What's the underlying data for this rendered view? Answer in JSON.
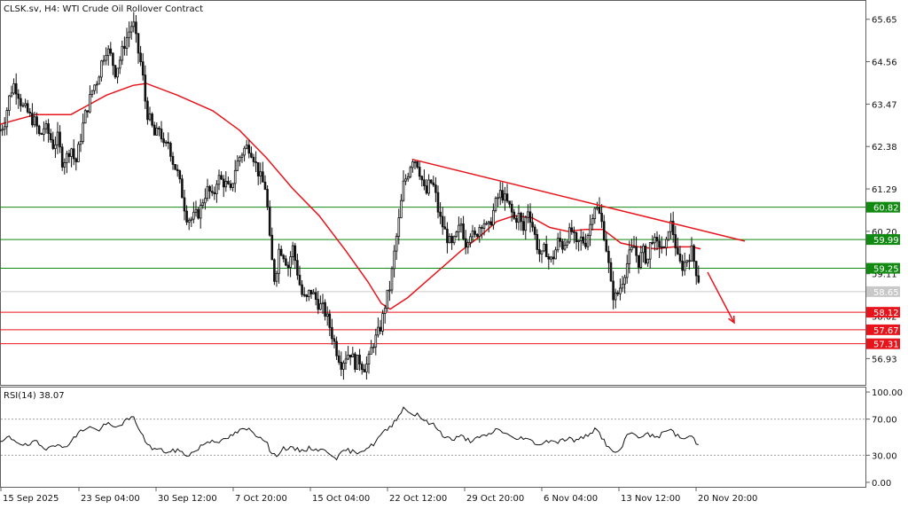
{
  "header": {
    "title": "CLSK.sv, H4:  WTI Crude Oil Rollover Contract"
  },
  "rsi_header": {
    "label": "RSI(14) 38.07"
  },
  "chart_data": [
    {
      "type": "candlestick",
      "title": "CLSK.sv, H4:  WTI Crude Oil Rollover Contract",
      "xlabel": "",
      "ylabel": "",
      "ylim": [
        56.3,
        66.1
      ],
      "yticks": [
        65.65,
        64.56,
        63.47,
        62.38,
        61.29,
        60.2,
        59.11,
        58.02,
        56.93
      ],
      "ytick_labels": [
        "65.65",
        "64.56",
        "63.47",
        "62.38",
        "61.29",
        "60.20",
        "59.11",
        "58.02",
        "56.93"
      ],
      "xtick_labels": [
        "15 Sep 2025",
        "23 Sep 04:00",
        "30 Sep 12:00",
        "7 Oct 20:00",
        "15 Oct 04:00",
        "22 Oct 12:00",
        "29 Oct 20:00",
        "6 Nov 04:00",
        "13 Nov 12:00",
        "20 Nov 20:00"
      ],
      "grid": false,
      "close_path": [
        [
          0,
          62.8
        ],
        [
          5,
          63.0
        ],
        [
          10,
          63.6
        ],
        [
          15,
          64.0
        ],
        [
          20,
          63.8
        ],
        [
          25,
          63.4
        ],
        [
          30,
          63.3
        ],
        [
          35,
          63.1
        ],
        [
          40,
          63.0
        ],
        [
          45,
          62.6
        ],
        [
          50,
          62.9
        ],
        [
          55,
          62.7
        ],
        [
          60,
          62.4
        ],
        [
          65,
          62.6
        ],
        [
          70,
          62.0
        ],
        [
          75,
          62.1
        ],
        [
          80,
          62.4
        ],
        [
          85,
          61.9
        ],
        [
          90,
          62.5
        ],
        [
          95,
          63.1
        ],
        [
          100,
          63.5
        ],
        [
          105,
          63.9
        ],
        [
          110,
          64.1
        ],
        [
          115,
          64.6
        ],
        [
          120,
          64.9
        ],
        [
          125,
          64.7
        ],
        [
          130,
          64.3
        ],
        [
          135,
          64.6
        ],
        [
          140,
          65.0
        ],
        [
          145,
          65.3
        ],
        [
          150,
          65.6
        ],
        [
          155,
          64.9
        ],
        [
          160,
          64.4
        ],
        [
          165,
          63.3
        ],
        [
          170,
          63.0
        ],
        [
          175,
          62.6
        ],
        [
          180,
          62.9
        ],
        [
          185,
          62.3
        ],
        [
          190,
          62.5
        ],
        [
          195,
          62.0
        ],
        [
          200,
          61.7
        ],
        [
          205,
          61.2
        ],
        [
          210,
          60.6
        ],
        [
          215,
          60.5
        ],
        [
          220,
          60.6
        ],
        [
          225,
          60.7
        ],
        [
          230,
          61.1
        ],
        [
          235,
          61.3
        ],
        [
          240,
          61.0
        ],
        [
          245,
          61.6
        ],
        [
          250,
          61.5
        ],
        [
          255,
          61.4
        ],
        [
          260,
          61.2
        ],
        [
          265,
          61.8
        ],
        [
          270,
          62.1
        ],
        [
          275,
          62.3
        ],
        [
          280,
          62.4
        ],
        [
          285,
          62.2
        ],
        [
          290,
          61.8
        ],
        [
          295,
          61.5
        ],
        [
          300,
          61.3
        ],
        [
          305,
          59.7
        ],
        [
          310,
          58.9
        ],
        [
          315,
          59.8
        ],
        [
          320,
          59.6
        ],
        [
          325,
          59.3
        ],
        [
          330,
          59.8
        ],
        [
          335,
          59.2
        ],
        [
          340,
          58.6
        ],
        [
          345,
          58.4
        ],
        [
          350,
          58.7
        ],
        [
          355,
          58.5
        ],
        [
          360,
          58.3
        ],
        [
          365,
          58.2
        ],
        [
          370,
          57.9
        ],
        [
          375,
          57.5
        ],
        [
          380,
          57.1
        ],
        [
          385,
          56.8
        ],
        [
          390,
          57.0
        ],
        [
          395,
          57.1
        ],
        [
          400,
          56.8
        ],
        [
          405,
          56.9
        ],
        [
          410,
          56.7
        ],
        [
          415,
          56.8
        ],
        [
          420,
          57.3
        ],
        [
          425,
          57.5
        ],
        [
          430,
          57.8
        ],
        [
          435,
          58.4
        ],
        [
          440,
          58.8
        ],
        [
          445,
          59.7
        ],
        [
          450,
          60.5
        ],
        [
          455,
          61.4
        ],
        [
          460,
          61.7
        ],
        [
          465,
          62.1
        ],
        [
          470,
          62.0
        ],
        [
          475,
          61.6
        ],
        [
          480,
          61.1
        ],
        [
          485,
          61.5
        ],
        [
          490,
          61.3
        ],
        [
          495,
          60.6
        ],
        [
          500,
          60.3
        ],
        [
          505,
          60.0
        ],
        [
          510,
          59.8
        ],
        [
          515,
          60.1
        ],
        [
          520,
          60.4
        ],
        [
          525,
          59.9
        ],
        [
          530,
          60.2
        ],
        [
          535,
          60.0
        ],
        [
          540,
          60.3
        ],
        [
          545,
          60.5
        ],
        [
          550,
          60.2
        ],
        [
          555,
          60.6
        ],
        [
          560,
          61.0
        ],
        [
          565,
          61.2
        ],
        [
          570,
          61.0
        ],
        [
          575,
          60.8
        ],
        [
          580,
          60.5
        ],
        [
          585,
          60.6
        ],
        [
          590,
          60.2
        ],
        [
          595,
          60.8
        ],
        [
          600,
          60.4
        ],
        [
          605,
          59.9
        ],
        [
          610,
          59.5
        ],
        [
          615,
          59.8
        ],
        [
          620,
          59.4
        ],
        [
          625,
          59.6
        ],
        [
          630,
          60.0
        ],
        [
          635,
          59.8
        ],
        [
          640,
          60.1
        ],
        [
          645,
          60.2
        ],
        [
          650,
          59.8
        ],
        [
          655,
          60.0
        ],
        [
          660,
          59.9
        ],
        [
          665,
          60.3
        ],
        [
          670,
          60.9
        ],
        [
          675,
          60.7
        ],
        [
          680,
          60.3
        ],
        [
          685,
          59.6
        ],
        [
          690,
          58.6
        ],
        [
          695,
          58.5
        ],
        [
          700,
          58.8
        ],
        [
          705,
          59.2
        ],
        [
          710,
          59.6
        ],
        [
          715,
          59.8
        ],
        [
          720,
          59.4
        ],
        [
          725,
          59.7
        ],
        [
          730,
          59.4
        ],
        [
          735,
          60.1
        ],
        [
          740,
          59.8
        ],
        [
          745,
          59.9
        ],
        [
          750,
          59.6
        ],
        [
          755,
          60.5
        ],
        [
          760,
          60.1
        ],
        [
          765,
          59.4
        ],
        [
          770,
          59.3
        ],
        [
          775,
          59.5
        ],
        [
          780,
          59.7
        ],
        [
          785,
          59.2
        ],
        [
          790,
          58.8
        ]
      ],
      "overlays": [
        {
          "kind": "moving_average",
          "color": "#e8141c",
          "path": [
            [
              0,
              62.95
            ],
            [
              40,
              63.2
            ],
            [
              80,
              63.2
            ],
            [
              120,
              63.7
            ],
            [
              150,
              63.95
            ],
            [
              165,
              64.0
            ],
            [
              200,
              63.7
            ],
            [
              240,
              63.3
            ],
            [
              270,
              62.8
            ],
            [
              300,
              62.1
            ],
            [
              330,
              61.3
            ],
            [
              360,
              60.6
            ],
            [
              390,
              59.7
            ],
            [
              415,
              58.9
            ],
            [
              430,
              58.35
            ],
            [
              440,
              58.2
            ],
            [
              460,
              58.5
            ],
            [
              480,
              58.9
            ],
            [
              500,
              59.3
            ],
            [
              520,
              59.7
            ],
            [
              540,
              60.05
            ],
            [
              560,
              60.45
            ],
            [
              580,
              60.6
            ],
            [
              600,
              60.55
            ],
            [
              620,
              60.3
            ],
            [
              640,
              60.2
            ],
            [
              660,
              60.25
            ],
            [
              680,
              60.25
            ],
            [
              700,
              59.9
            ],
            [
              720,
              59.8
            ],
            [
              740,
              59.75
            ],
            [
              760,
              59.8
            ],
            [
              780,
              59.8
            ],
            [
              790,
              59.75
            ]
          ]
        },
        {
          "kind": "trendline",
          "color": "#e8141c",
          "from": [
            465,
            62.05
          ],
          "to": [
            840,
            59.95
          ]
        },
        {
          "kind": "arrow",
          "color": "#e8141c",
          "from": [
            798,
            59.15
          ],
          "to": [
            828,
            57.85
          ]
        }
      ],
      "horizontal_levels": [
        {
          "value": 60.82,
          "label": "60.82",
          "color": "#118a11"
        },
        {
          "value": 59.99,
          "label": "59.99",
          "color": "#118a11"
        },
        {
          "value": 59.25,
          "label": "59.25",
          "color": "#118a11"
        },
        {
          "value": 58.65,
          "label": "58.65",
          "color": "#c8c8c8"
        },
        {
          "value": 58.12,
          "label": "58.12",
          "color": "#e8141c"
        },
        {
          "value": 57.67,
          "label": "57.67",
          "color": "#e8141c"
        },
        {
          "value": 57.31,
          "label": "57.31",
          "color": "#e8141c"
        }
      ]
    },
    {
      "type": "line",
      "title": "RSI(14) 38.07",
      "ylim": [
        -5,
        105
      ],
      "yticks": [
        100,
        70,
        30,
        0
      ],
      "ytick_labels": [
        "100.00",
        "70.00",
        "30.00",
        "0.00"
      ],
      "reference_lines": [
        70,
        30
      ],
      "series": [
        {
          "color": "#111111",
          "values": [
            [
              0,
              43
            ],
            [
              10,
              50
            ],
            [
              20,
              45
            ],
            [
              30,
              40
            ],
            [
              40,
              45
            ],
            [
              50,
              37
            ],
            [
              60,
              43
            ],
            [
              70,
              38
            ],
            [
              80,
              45
            ],
            [
              90,
              56
            ],
            [
              100,
              62
            ],
            [
              110,
              57
            ],
            [
              120,
              65
            ],
            [
              130,
              60
            ],
            [
              140,
              67
            ],
            [
              150,
              72
            ],
            [
              155,
              64
            ],
            [
              160,
              52
            ],
            [
              170,
              38
            ],
            [
              180,
              36
            ],
            [
              190,
              33
            ],
            [
              200,
              36
            ],
            [
              210,
              30
            ],
            [
              220,
              34
            ],
            [
              230,
              43
            ],
            [
              240,
              47
            ],
            [
              250,
              45
            ],
            [
              260,
              51
            ],
            [
              270,
              57
            ],
            [
              280,
              59
            ],
            [
              290,
              52
            ],
            [
              300,
              47
            ],
            [
              305,
              33
            ],
            [
              310,
              29
            ],
            [
              320,
              38
            ],
            [
              330,
              37
            ],
            [
              340,
              35
            ],
            [
              350,
              38
            ],
            [
              360,
              36
            ],
            [
              370,
              34
            ],
            [
              380,
              27
            ],
            [
              390,
              36
            ],
            [
              400,
              33
            ],
            [
              410,
              36
            ],
            [
              420,
              41
            ],
            [
              430,
              53
            ],
            [
              440,
              61
            ],
            [
              450,
              75
            ],
            [
              455,
              82
            ],
            [
              460,
              80
            ],
            [
              465,
              74
            ],
            [
              470,
              77
            ],
            [
              480,
              67
            ],
            [
              490,
              63
            ],
            [
              500,
              52
            ],
            [
              510,
              47
            ],
            [
              520,
              51
            ],
            [
              530,
              46
            ],
            [
              540,
              49
            ],
            [
              550,
              52
            ],
            [
              560,
              59
            ],
            [
              570,
              55
            ],
            [
              580,
              47
            ],
            [
              590,
              50
            ],
            [
              600,
              45
            ],
            [
              610,
              42
            ],
            [
              620,
              47
            ],
            [
              630,
              45
            ],
            [
              640,
              49
            ],
            [
              650,
              46
            ],
            [
              660,
              51
            ],
            [
              670,
              58
            ],
            [
              675,
              56
            ],
            [
              680,
              48
            ],
            [
              690,
              33
            ],
            [
              700,
              35
            ],
            [
              705,
              47
            ],
            [
              710,
              55
            ],
            [
              720,
              51
            ],
            [
              730,
              53
            ],
            [
              740,
              50
            ],
            [
              750,
              55
            ],
            [
              755,
              61
            ],
            [
              760,
              54
            ],
            [
              770,
              48
            ],
            [
              780,
              51
            ],
            [
              790,
              38
            ]
          ]
        }
      ]
    }
  ]
}
